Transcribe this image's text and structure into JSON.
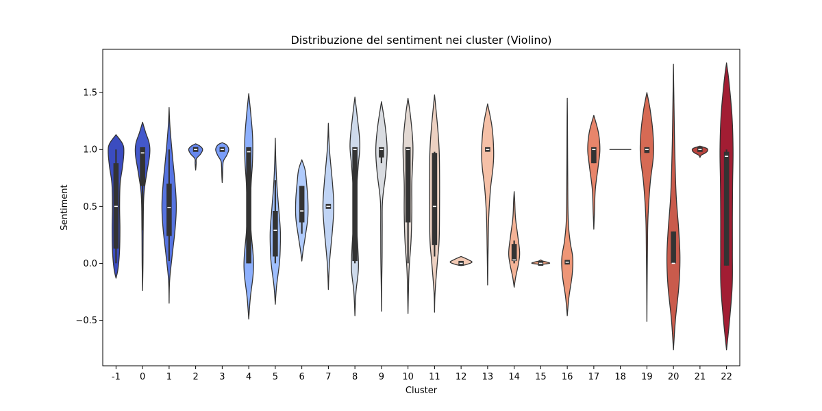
{
  "chart_data": {
    "type": "violin",
    "title": "Distribuzione del sentiment nei cluster (Violino)",
    "xlabel": "Cluster",
    "ylabel": "Sentiment",
    "ylim": [
      -0.9,
      1.88
    ],
    "yticks": [
      -0.5,
      0.0,
      0.5,
      1.0,
      1.5
    ],
    "ytick_labels": [
      "−0.5",
      "0.0",
      "0.5",
      "1.0",
      "1.5"
    ],
    "categories": [
      "-1",
      "0",
      "1",
      "2",
      "3",
      "4",
      "5",
      "6",
      "7",
      "8",
      "9",
      "10",
      "11",
      "12",
      "13",
      "14",
      "15",
      "16",
      "17",
      "18",
      "19",
      "20",
      "21",
      "22"
    ],
    "palette": "coolwarm",
    "grid": false,
    "violins": [
      {
        "cluster": "-1",
        "color": "#3b4cc0",
        "min": -0.13,
        "max": 1.13,
        "q1": 0.13,
        "median": 0.5,
        "q3": 0.88,
        "whisker_low": 0.0,
        "whisker_high": 1.0,
        "profile": [
          [
            -0.13,
            0.0
          ],
          [
            -0.05,
            0.18
          ],
          [
            0.1,
            0.32
          ],
          [
            0.3,
            0.36
          ],
          [
            0.5,
            0.33
          ],
          [
            0.7,
            0.38
          ],
          [
            0.85,
            0.6
          ],
          [
            0.98,
            0.72
          ],
          [
            1.05,
            0.6
          ],
          [
            1.13,
            0.0
          ]
        ]
      },
      {
        "cluster": "0",
        "color": "#4358cb",
        "min": -0.24,
        "max": 1.24,
        "q1": 0.68,
        "median": 0.97,
        "q3": 1.02,
        "whisker_low": 0.29,
        "whisker_high": 1.02,
        "profile": [
          [
            -0.24,
            0.0
          ],
          [
            0.0,
            0.04
          ],
          [
            0.3,
            0.06
          ],
          [
            0.6,
            0.12
          ],
          [
            0.8,
            0.4
          ],
          [
            0.95,
            0.65
          ],
          [
            1.05,
            0.62
          ],
          [
            1.15,
            0.28
          ],
          [
            1.24,
            0.0
          ]
        ]
      },
      {
        "cluster": "1",
        "color": "#5673e0",
        "min": -0.35,
        "max": 1.37,
        "q1": 0.24,
        "median": 0.49,
        "q3": 0.7,
        "whisker_low": 0.02,
        "whisker_high": 1.0,
        "profile": [
          [
            -0.35,
            0.0
          ],
          [
            -0.15,
            0.05
          ],
          [
            0.05,
            0.26
          ],
          [
            0.3,
            0.55
          ],
          [
            0.5,
            0.66
          ],
          [
            0.7,
            0.55
          ],
          [
            0.95,
            0.3
          ],
          [
            1.2,
            0.08
          ],
          [
            1.37,
            0.0
          ]
        ]
      },
      {
        "cluster": "2",
        "color": "#6788ee",
        "min": 0.82,
        "max": 1.05,
        "q1": 1.0,
        "median": 1.0,
        "q3": 1.0,
        "whisker_low": 1.0,
        "whisker_high": 1.0,
        "profile": [
          [
            0.82,
            0.0
          ],
          [
            0.85,
            0.03
          ],
          [
            0.88,
            0.05
          ],
          [
            0.92,
            0.08
          ],
          [
            0.96,
            0.45
          ],
          [
            1.0,
            0.64
          ],
          [
            1.03,
            0.4
          ],
          [
            1.05,
            0.0
          ]
        ]
      },
      {
        "cluster": "3",
        "color": "#7a9df8",
        "min": 0.71,
        "max": 1.06,
        "q1": 1.0,
        "median": 1.0,
        "q3": 1.0,
        "whisker_low": 1.0,
        "whisker_high": 1.0,
        "profile": [
          [
            0.71,
            0.0
          ],
          [
            0.76,
            0.03
          ],
          [
            0.85,
            0.06
          ],
          [
            0.9,
            0.12
          ],
          [
            0.95,
            0.42
          ],
          [
            1.0,
            0.6
          ],
          [
            1.04,
            0.4
          ],
          [
            1.06,
            0.0
          ]
        ]
      },
      {
        "cluster": "4",
        "color": "#8db0fe",
        "min": -0.49,
        "max": 1.49,
        "q1": 0.0,
        "median": 0.98,
        "q3": 1.02,
        "whisker_low": 0.0,
        "whisker_high": 1.02,
        "profile": [
          [
            -0.49,
            0.0
          ],
          [
            -0.3,
            0.15
          ],
          [
            -0.1,
            0.4
          ],
          [
            0.05,
            0.42
          ],
          [
            0.3,
            0.2
          ],
          [
            0.5,
            0.16
          ],
          [
            0.7,
            0.22
          ],
          [
            0.9,
            0.35
          ],
          [
            1.1,
            0.36
          ],
          [
            1.3,
            0.2
          ],
          [
            1.49,
            0.0
          ]
        ]
      },
      {
        "cluster": "5",
        "color": "#9fbfff",
        "min": -0.36,
        "max": 1.1,
        "q1": 0.06,
        "median": 0.29,
        "q3": 0.46,
        "whisker_low": 0.0,
        "whisker_high": 0.73,
        "profile": [
          [
            -0.36,
            0.0
          ],
          [
            -0.2,
            0.12
          ],
          [
            0.0,
            0.38
          ],
          [
            0.15,
            0.46
          ],
          [
            0.3,
            0.46
          ],
          [
            0.5,
            0.3
          ],
          [
            0.7,
            0.14
          ],
          [
            0.9,
            0.05
          ],
          [
            1.1,
            0.0
          ]
        ]
      },
      {
        "cluster": "6",
        "color": "#b0cbfc",
        "min": 0.02,
        "max": 0.91,
        "q1": 0.36,
        "median": 0.46,
        "q3": 0.68,
        "whisker_low": 0.26,
        "whisker_high": 0.68,
        "profile": [
          [
            0.02,
            0.0
          ],
          [
            0.1,
            0.1
          ],
          [
            0.25,
            0.34
          ],
          [
            0.4,
            0.55
          ],
          [
            0.55,
            0.56
          ],
          [
            0.7,
            0.44
          ],
          [
            0.82,
            0.3
          ],
          [
            0.91,
            0.0
          ]
        ]
      },
      {
        "cluster": "7",
        "color": "#c0d4f5",
        "min": -0.23,
        "max": 1.23,
        "q1": 0.5,
        "median": 0.5,
        "q3": 0.5,
        "whisker_low": 0.5,
        "whisker_high": 0.5,
        "profile": [
          [
            -0.23,
            0.0
          ],
          [
            0.0,
            0.1
          ],
          [
            0.3,
            0.38
          ],
          [
            0.5,
            0.5
          ],
          [
            0.7,
            0.38
          ],
          [
            1.0,
            0.1
          ],
          [
            1.23,
            0.0
          ]
        ]
      },
      {
        "cluster": "8",
        "color": "#cedaeb",
        "min": -0.46,
        "max": 1.46,
        "q1": 0.02,
        "median": 1.0,
        "q3": 1.02,
        "whisker_low": 0.0,
        "whisker_high": 1.02,
        "profile": [
          [
            -0.46,
            0.0
          ],
          [
            -0.25,
            0.1
          ],
          [
            -0.05,
            0.32
          ],
          [
            0.15,
            0.26
          ],
          [
            0.4,
            0.1
          ],
          [
            0.6,
            0.12
          ],
          [
            0.85,
            0.3
          ],
          [
            1.05,
            0.45
          ],
          [
            1.3,
            0.2
          ],
          [
            1.46,
            0.0
          ]
        ]
      },
      {
        "cluster": "9",
        "color": "#d9dce1",
        "min": -0.42,
        "max": 1.42,
        "q1": 0.93,
        "median": 1.0,
        "q3": 1.02,
        "whisker_low": 0.88,
        "whisker_high": 1.02,
        "profile": [
          [
            -0.42,
            0.0
          ],
          [
            -0.2,
            0.02
          ],
          [
            0.05,
            0.06
          ],
          [
            0.3,
            0.07
          ],
          [
            0.55,
            0.1
          ],
          [
            0.8,
            0.4
          ],
          [
            1.0,
            0.52
          ],
          [
            1.2,
            0.35
          ],
          [
            1.42,
            0.0
          ]
        ]
      },
      {
        "cluster": "10",
        "color": "#e3d9d3",
        "min": -0.44,
        "max": 1.45,
        "q1": 0.36,
        "median": 1.0,
        "q3": 1.02,
        "whisker_low": 0.0,
        "whisker_high": 1.02,
        "profile": [
          [
            -0.44,
            0.0
          ],
          [
            -0.25,
            0.04
          ],
          [
            -0.05,
            0.1
          ],
          [
            0.2,
            0.28
          ],
          [
            0.45,
            0.35
          ],
          [
            0.7,
            0.35
          ],
          [
            0.95,
            0.45
          ],
          [
            1.1,
            0.42
          ],
          [
            1.3,
            0.22
          ],
          [
            1.45,
            0.0
          ]
        ]
      },
      {
        "cluster": "11",
        "color": "#edd1c2",
        "min": -0.43,
        "max": 1.48,
        "q1": 0.16,
        "median": 0.5,
        "q3": 0.97,
        "whisker_low": 0.06,
        "whisker_high": 0.98,
        "profile": [
          [
            -0.43,
            0.0
          ],
          [
            -0.25,
            0.05
          ],
          [
            0.0,
            0.25
          ],
          [
            0.2,
            0.42
          ],
          [
            0.5,
            0.46
          ],
          [
            0.8,
            0.46
          ],
          [
            1.0,
            0.42
          ],
          [
            1.2,
            0.28
          ],
          [
            1.48,
            0.0
          ]
        ]
      },
      {
        "cluster": "12",
        "color": "#f2c9b4",
        "min": -0.02,
        "max": 0.06,
        "q1": 0.0,
        "median": 0.0,
        "q3": 0.0,
        "whisker_low": 0.0,
        "whisker_high": 0.0,
        "profile": [
          [
            -0.02,
            0.0
          ],
          [
            -0.01,
            0.5
          ],
          [
            0.01,
            1.0
          ],
          [
            0.03,
            0.7
          ],
          [
            0.05,
            0.25
          ],
          [
            0.06,
            0.0
          ]
        ]
      },
      {
        "cluster": "13",
        "color": "#f5c0a7",
        "min": -0.19,
        "max": 1.4,
        "q1": 0.98,
        "median": 1.0,
        "q3": 1.02,
        "whisker_low": 0.98,
        "whisker_high": 1.02,
        "profile": [
          [
            -0.19,
            0.0
          ],
          [
            0.1,
            0.04
          ],
          [
            0.4,
            0.1
          ],
          [
            0.65,
            0.26
          ],
          [
            0.85,
            0.5
          ],
          [
            1.0,
            0.55
          ],
          [
            1.2,
            0.4
          ],
          [
            1.4,
            0.0
          ]
        ]
      },
      {
        "cluster": "14",
        "color": "#f4b397",
        "min": -0.21,
        "max": 0.63,
        "q1": 0.02,
        "median": 0.03,
        "q3": 0.17,
        "whisker_low": 0.0,
        "whisker_high": 0.2,
        "profile": [
          [
            -0.21,
            0.0
          ],
          [
            -0.12,
            0.14
          ],
          [
            0.0,
            0.4
          ],
          [
            0.1,
            0.5
          ],
          [
            0.25,
            0.32
          ],
          [
            0.4,
            0.12
          ],
          [
            0.55,
            0.05
          ],
          [
            0.63,
            0.0
          ]
        ]
      },
      {
        "cluster": "15",
        "color": "#f3a481",
        "min": -0.01,
        "max": 0.03,
        "q1": 0.0,
        "median": 0.0,
        "q3": 0.0,
        "whisker_low": 0.0,
        "whisker_high": 0.0,
        "profile": [
          [
            -0.01,
            0.0
          ],
          [
            0.0,
            0.8
          ],
          [
            0.01,
            0.6
          ],
          [
            0.02,
            0.2
          ],
          [
            0.03,
            0.0
          ]
        ]
      },
      {
        "cluster": "16",
        "color": "#ee9677",
        "min": -0.46,
        "max": 1.45,
        "q1": -0.01,
        "median": 0.01,
        "q3": 0.03,
        "whisker_low": -0.01,
        "whisker_high": 0.03,
        "profile": [
          [
            -0.46,
            0.0
          ],
          [
            -0.3,
            0.15
          ],
          [
            -0.1,
            0.45
          ],
          [
            0.05,
            0.5
          ],
          [
            0.2,
            0.25
          ],
          [
            0.4,
            0.08
          ],
          [
            0.8,
            0.04
          ],
          [
            1.2,
            0.02
          ],
          [
            1.45,
            0.0
          ]
        ]
      },
      {
        "cluster": "17",
        "color": "#e8856b",
        "min": 0.3,
        "max": 1.3,
        "q1": 0.88,
        "median": 1.0,
        "q3": 1.02,
        "whisker_low": 0.88,
        "whisker_high": 1.02,
        "profile": [
          [
            0.3,
            0.0
          ],
          [
            0.45,
            0.06
          ],
          [
            0.65,
            0.14
          ],
          [
            0.85,
            0.4
          ],
          [
            1.0,
            0.56
          ],
          [
            1.15,
            0.42
          ],
          [
            1.3,
            0.0
          ]
        ]
      },
      {
        "cluster": "18",
        "color": "#de7961",
        "min": 1.0,
        "max": 1.0,
        "q1": 1.0,
        "median": 1.0,
        "q3": 1.0,
        "whisker_low": 1.0,
        "whisker_high": 1.0,
        "profile": []
      },
      {
        "cluster": "19",
        "color": "#d66a54",
        "min": -0.51,
        "max": 1.5,
        "q1": 0.97,
        "median": 1.0,
        "q3": 1.02,
        "whisker_low": 0.97,
        "whisker_high": 1.02,
        "profile": [
          [
            -0.51,
            0.0
          ],
          [
            -0.2,
            0.02
          ],
          [
            0.1,
            0.05
          ],
          [
            0.4,
            0.1
          ],
          [
            0.7,
            0.3
          ],
          [
            0.95,
            0.6
          ],
          [
            1.15,
            0.55
          ],
          [
            1.35,
            0.3
          ],
          [
            1.5,
            0.0
          ]
        ]
      },
      {
        "cluster": "20",
        "color": "#c95b4c",
        "min": -0.76,
        "max": 1.75,
        "q1": 0.0,
        "median": 0.0,
        "q3": 0.28,
        "whisker_low": 0.0,
        "whisker_high": 0.28,
        "profile": [
          [
            -0.76,
            0.0
          ],
          [
            -0.5,
            0.18
          ],
          [
            -0.2,
            0.5
          ],
          [
            0.05,
            0.6
          ],
          [
            0.3,
            0.48
          ],
          [
            0.6,
            0.25
          ],
          [
            1.0,
            0.12
          ],
          [
            1.4,
            0.05
          ],
          [
            1.75,
            0.0
          ]
        ]
      },
      {
        "cluster": "21",
        "color": "#b8443e",
        "min": 0.93,
        "max": 1.03,
        "q1": 1.0,
        "median": 1.0,
        "q3": 1.0,
        "whisker_low": 1.0,
        "whisker_high": 1.0,
        "profile": [
          [
            0.93,
            0.0
          ],
          [
            0.95,
            0.12
          ],
          [
            0.97,
            0.5
          ],
          [
            0.99,
            0.7
          ],
          [
            1.01,
            0.62
          ],
          [
            1.03,
            0.0
          ]
        ]
      },
      {
        "cluster": "22",
        "color": "#a21d33",
        "min": -0.76,
        "max": 1.76,
        "q1": -0.02,
        "median": 0.94,
        "q3": 0.98,
        "whisker_low": -0.02,
        "whisker_high": 1.0,
        "profile": [
          [
            -0.76,
            0.0
          ],
          [
            -0.5,
            0.28
          ],
          [
            -0.2,
            0.52
          ],
          [
            0.1,
            0.54
          ],
          [
            0.4,
            0.54
          ],
          [
            0.7,
            0.56
          ],
          [
            1.0,
            0.6
          ],
          [
            1.3,
            0.5
          ],
          [
            1.6,
            0.22
          ],
          [
            1.76,
            0.0
          ]
        ]
      }
    ]
  }
}
